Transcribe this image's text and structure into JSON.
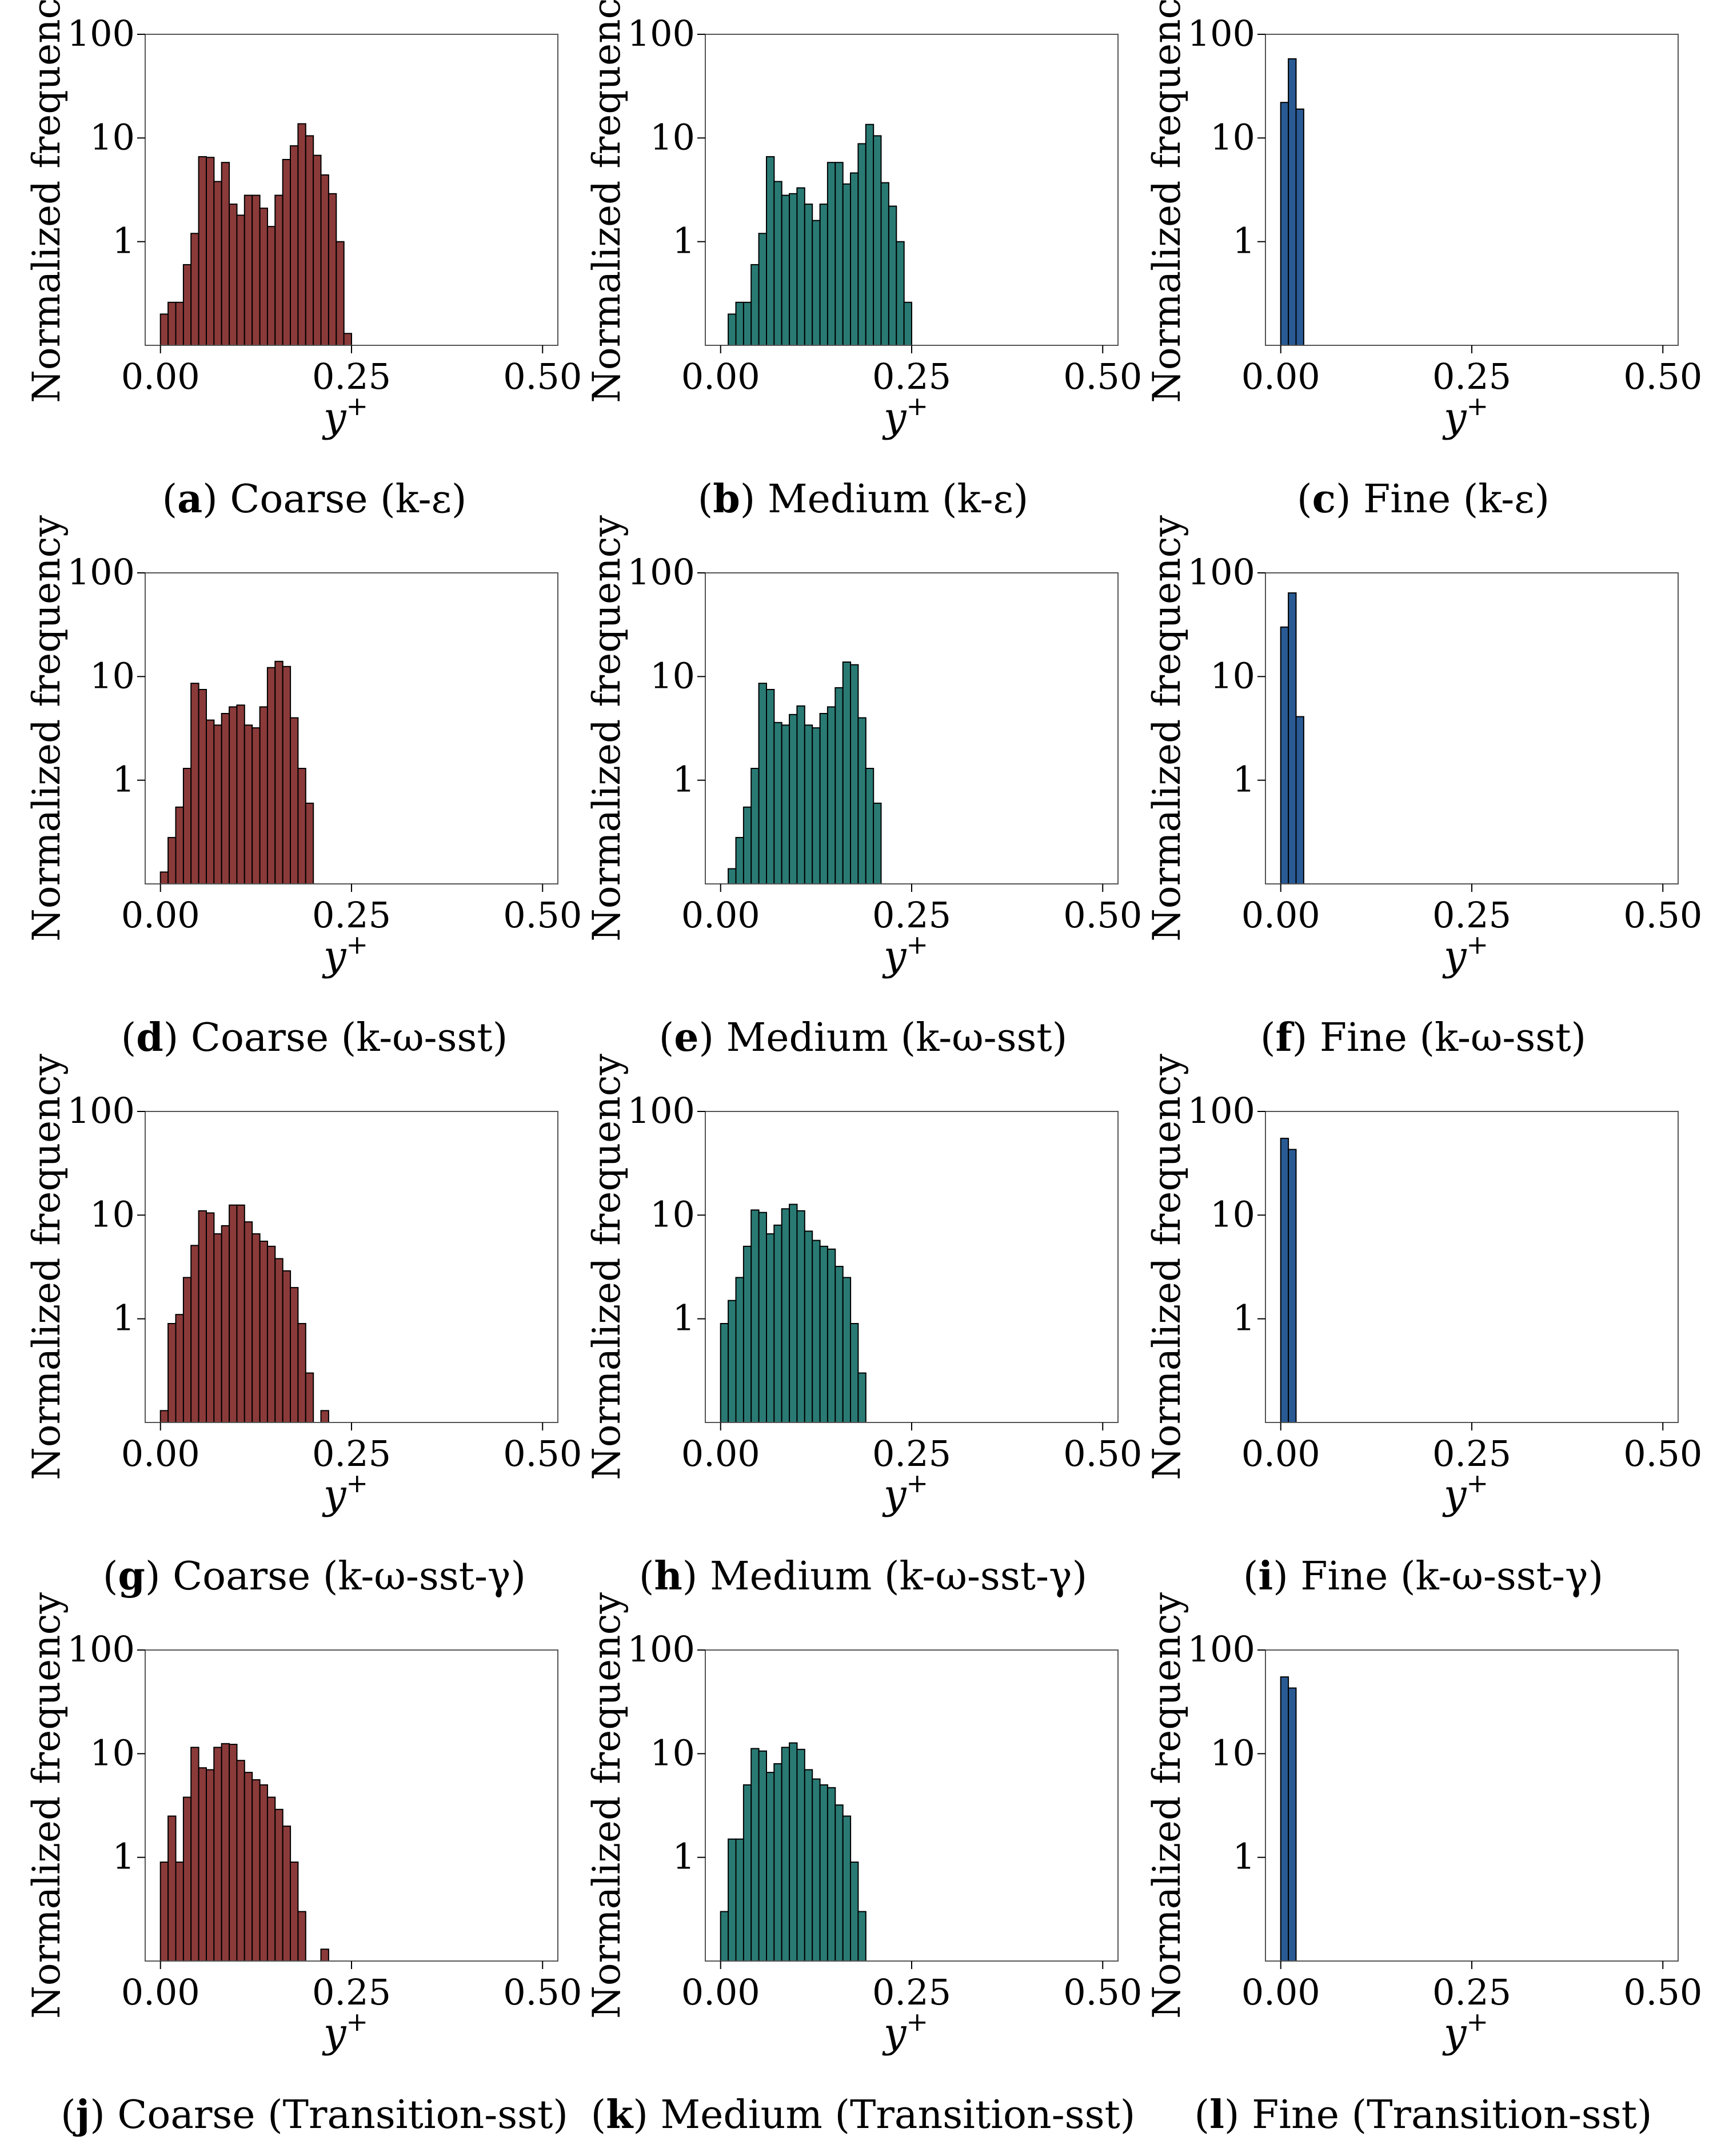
{
  "figure": {
    "panels": [
      {
        "id": "a",
        "label": "a",
        "caption": "Coarse (k-ε)",
        "color": "#8b3a3a"
      },
      {
        "id": "b",
        "label": "b",
        "caption": "Medium (k-ε)",
        "color": "#2a7a74"
      },
      {
        "id": "c",
        "label": "c",
        "caption": "Fine (k-ε)",
        "color": "#2a5a94"
      },
      {
        "id": "d",
        "label": "d",
        "caption": "Coarse (k-ω-sst)",
        "color": "#8b3a3a"
      },
      {
        "id": "e",
        "label": "e",
        "caption": "Medium (k-ω-sst)",
        "color": "#2a7a74"
      },
      {
        "id": "f",
        "label": "f",
        "caption": "Fine (k-ω-sst)",
        "color": "#2a5a94"
      },
      {
        "id": "g",
        "label": "g",
        "caption": "Coarse (k-ω-sst-γ)",
        "color": "#8b3a3a"
      },
      {
        "id": "h",
        "label": "h",
        "caption": "Medium (k-ω-sst-γ)",
        "color": "#2a7a74"
      },
      {
        "id": "i",
        "label": "i",
        "caption": "Fine (k-ω-sst-γ)",
        "color": "#2a5a94"
      },
      {
        "id": "j",
        "label": "j",
        "caption": "Coarse (Transition-sst)",
        "color": "#8b3a3a"
      },
      {
        "id": "k",
        "label": "k",
        "caption": "Medium (Transition-sst)",
        "color": "#2a7a74"
      },
      {
        "id": "l",
        "label": "l",
        "caption": "Fine (Transition-sst)",
        "color": "#2a5a94"
      }
    ]
  },
  "chart_data": [
    {
      "id": "a",
      "type": "bar",
      "title": "",
      "xlabel": "y+",
      "ylabel": "Normalized frequency",
      "yscale": "log",
      "xlim": [
        -0.02,
        0.52
      ],
      "ylim": [
        0.1,
        100
      ],
      "xticks": [
        "0.00",
        "0.25",
        "0.50"
      ],
      "yticks": [
        "1",
        "10",
        "100"
      ],
      "bin_width": 0.01,
      "bins": [
        [
          0.005,
          0.2
        ],
        [
          0.015,
          0.26
        ],
        [
          0.025,
          0.26
        ],
        [
          0.035,
          0.6
        ],
        [
          0.045,
          1.2
        ],
        [
          0.055,
          6.6
        ],
        [
          0.065,
          6.5
        ],
        [
          0.075,
          3.8
        ],
        [
          0.085,
          5.8
        ],
        [
          0.095,
          2.3
        ],
        [
          0.105,
          1.8
        ],
        [
          0.115,
          2.8
        ],
        [
          0.125,
          2.8
        ],
        [
          0.135,
          2.1
        ],
        [
          0.145,
          1.4
        ],
        [
          0.155,
          2.8
        ],
        [
          0.165,
          6.2
        ],
        [
          0.175,
          8.4
        ],
        [
          0.185,
          13.7
        ],
        [
          0.195,
          10.5
        ],
        [
          0.205,
          6.8
        ],
        [
          0.215,
          4.4
        ],
        [
          0.225,
          2.9
        ],
        [
          0.235,
          1.0
        ],
        [
          0.245,
          0.13
        ]
      ]
    },
    {
      "id": "b",
      "type": "bar",
      "title": "",
      "xlabel": "y+",
      "ylabel": "Normalized frequency",
      "yscale": "log",
      "xlim": [
        -0.02,
        0.52
      ],
      "ylim": [
        0.1,
        100
      ],
      "xticks": [
        "0.00",
        "0.25",
        "0.50"
      ],
      "yticks": [
        "1",
        "10",
        "100"
      ],
      "bin_width": 0.01,
      "bins": [
        [
          0.015,
          0.2
        ],
        [
          0.025,
          0.26
        ],
        [
          0.035,
          0.26
        ],
        [
          0.045,
          0.6
        ],
        [
          0.055,
          1.2
        ],
        [
          0.065,
          6.6
        ],
        [
          0.075,
          3.8
        ],
        [
          0.085,
          2.8
        ],
        [
          0.095,
          2.9
        ],
        [
          0.105,
          3.3
        ],
        [
          0.115,
          2.3
        ],
        [
          0.125,
          1.6
        ],
        [
          0.135,
          2.3
        ],
        [
          0.145,
          5.8
        ],
        [
          0.155,
          5.8
        ],
        [
          0.165,
          3.6
        ],
        [
          0.175,
          4.6
        ],
        [
          0.185,
          8.8
        ],
        [
          0.195,
          13.5
        ],
        [
          0.205,
          10.5
        ],
        [
          0.215,
          3.7
        ],
        [
          0.225,
          2.2
        ],
        [
          0.235,
          1.0
        ],
        [
          0.245,
          0.26
        ]
      ]
    },
    {
      "id": "c",
      "type": "bar",
      "title": "",
      "xlabel": "y+",
      "ylabel": "Normalized frequency",
      "yscale": "log",
      "xlim": [
        -0.02,
        0.52
      ],
      "ylim": [
        0.1,
        100
      ],
      "xticks": [
        "0.00",
        "0.25",
        "0.50"
      ],
      "yticks": [
        "1",
        "10",
        "100"
      ],
      "bin_width": 0.01,
      "bins": [
        [
          0.005,
          22
        ],
        [
          0.015,
          58
        ],
        [
          0.025,
          19
        ]
      ]
    },
    {
      "id": "d",
      "type": "bar",
      "title": "",
      "xlabel": "y+",
      "ylabel": "Normalized frequency",
      "yscale": "log",
      "xlim": [
        -0.02,
        0.52
      ],
      "ylim": [
        0.1,
        100
      ],
      "xticks": [
        "0.00",
        "0.25",
        "0.50"
      ],
      "yticks": [
        "1",
        "10",
        "100"
      ],
      "bin_width": 0.01,
      "bins": [
        [
          0.005,
          0.13
        ],
        [
          0.015,
          0.28
        ],
        [
          0.025,
          0.55
        ],
        [
          0.035,
          1.3
        ],
        [
          0.045,
          8.6
        ],
        [
          0.055,
          7.5
        ],
        [
          0.065,
          3.8
        ],
        [
          0.075,
          3.4
        ],
        [
          0.085,
          4.4
        ],
        [
          0.095,
          5.1
        ],
        [
          0.105,
          5.3
        ],
        [
          0.115,
          3.4
        ],
        [
          0.125,
          3.2
        ],
        [
          0.135,
          5.1
        ],
        [
          0.145,
          12.2
        ],
        [
          0.155,
          14.0
        ],
        [
          0.165,
          12.5
        ],
        [
          0.175,
          4.0
        ],
        [
          0.185,
          1.3
        ],
        [
          0.195,
          0.6
        ]
      ]
    },
    {
      "id": "e",
      "type": "bar",
      "title": "",
      "xlabel": "y+",
      "ylabel": "Normalized frequency",
      "yscale": "log",
      "xlim": [
        -0.02,
        0.52
      ],
      "ylim": [
        0.1,
        100
      ],
      "xticks": [
        "0.00",
        "0.25",
        "0.50"
      ],
      "yticks": [
        "1",
        "10",
        "100"
      ],
      "bin_width": 0.01,
      "bins": [
        [
          0.015,
          0.14
        ],
        [
          0.025,
          0.28
        ],
        [
          0.035,
          0.55
        ],
        [
          0.045,
          1.3
        ],
        [
          0.055,
          8.6
        ],
        [
          0.065,
          7.5
        ],
        [
          0.075,
          3.6
        ],
        [
          0.085,
          3.4
        ],
        [
          0.095,
          4.3
        ],
        [
          0.105,
          5.2
        ],
        [
          0.115,
          3.4
        ],
        [
          0.125,
          3.2
        ],
        [
          0.135,
          4.4
        ],
        [
          0.145,
          5.1
        ],
        [
          0.155,
          7.8
        ],
        [
          0.165,
          13.8
        ],
        [
          0.175,
          13.0
        ],
        [
          0.185,
          4.0
        ],
        [
          0.195,
          1.3
        ],
        [
          0.205,
          0.6
        ]
      ]
    },
    {
      "id": "f",
      "type": "bar",
      "title": "",
      "xlabel": "y+",
      "ylabel": "Normalized frequency",
      "yscale": "log",
      "xlim": [
        -0.02,
        0.52
      ],
      "ylim": [
        0.1,
        100
      ],
      "xticks": [
        "0.00",
        "0.25",
        "0.50"
      ],
      "yticks": [
        "1",
        "10",
        "100"
      ],
      "bin_width": 0.01,
      "bins": [
        [
          0.005,
          30
        ],
        [
          0.015,
          64
        ],
        [
          0.025,
          4.1
        ]
      ]
    },
    {
      "id": "g",
      "type": "bar",
      "title": "",
      "xlabel": "y+",
      "ylabel": "Normalized frequency",
      "yscale": "log",
      "xlim": [
        -0.02,
        0.52
      ],
      "ylim": [
        0.1,
        100
      ],
      "xticks": [
        "0.00",
        "0.25",
        "0.50"
      ],
      "yticks": [
        "1",
        "10",
        "100"
      ],
      "bin_width": 0.01,
      "bins": [
        [
          0.005,
          0.13
        ],
        [
          0.015,
          0.9
        ],
        [
          0.025,
          1.1
        ],
        [
          0.035,
          2.5
        ],
        [
          0.045,
          5.1
        ],
        [
          0.055,
          11.0
        ],
        [
          0.065,
          10.5
        ],
        [
          0.075,
          6.6
        ],
        [
          0.085,
          7.9
        ],
        [
          0.095,
          12.5
        ],
        [
          0.105,
          12.5
        ],
        [
          0.115,
          8.6
        ],
        [
          0.125,
          6.6
        ],
        [
          0.135,
          5.6
        ],
        [
          0.145,
          5.0
        ],
        [
          0.155,
          3.8
        ],
        [
          0.165,
          2.9
        ],
        [
          0.175,
          2.0
        ],
        [
          0.185,
          0.9
        ],
        [
          0.195,
          0.3
        ],
        [
          0.215,
          0.13
        ]
      ]
    },
    {
      "id": "h",
      "type": "bar",
      "title": "",
      "xlabel": "y+",
      "ylabel": "Normalized frequency",
      "yscale": "log",
      "xlim": [
        -0.02,
        0.52
      ],
      "ylim": [
        0.1,
        100
      ],
      "xticks": [
        "0.00",
        "0.25",
        "0.50"
      ],
      "yticks": [
        "1",
        "10",
        "100"
      ],
      "bin_width": 0.01,
      "bins": [
        [
          0.005,
          0.9
        ],
        [
          0.015,
          1.5
        ],
        [
          0.025,
          2.5
        ],
        [
          0.035,
          5.0
        ],
        [
          0.045,
          11.2
        ],
        [
          0.055,
          10.6
        ],
        [
          0.065,
          6.6
        ],
        [
          0.075,
          8.0
        ],
        [
          0.085,
          11.5
        ],
        [
          0.095,
          12.7
        ],
        [
          0.105,
          11.0
        ],
        [
          0.115,
          7.0
        ],
        [
          0.125,
          5.7
        ],
        [
          0.135,
          5.0
        ],
        [
          0.145,
          4.7
        ],
        [
          0.155,
          3.2
        ],
        [
          0.165,
          2.5
        ],
        [
          0.175,
          0.9
        ],
        [
          0.185,
          0.3
        ]
      ]
    },
    {
      "id": "i",
      "type": "bar",
      "title": "",
      "xlabel": "y+",
      "ylabel": "Normalized frequency",
      "yscale": "log",
      "xlim": [
        -0.02,
        0.52
      ],
      "ylim": [
        0.1,
        100
      ],
      "xticks": [
        "0.00",
        "0.25",
        "0.50"
      ],
      "yticks": [
        "1",
        "10",
        "100"
      ],
      "bin_width": 0.01,
      "bins": [
        [
          0.005,
          55
        ],
        [
          0.015,
          43
        ]
      ]
    },
    {
      "id": "j",
      "type": "bar",
      "title": "",
      "xlabel": "y+",
      "ylabel": "Normalized frequency",
      "yscale": "log",
      "xlim": [
        -0.02,
        0.52
      ],
      "ylim": [
        0.1,
        100
      ],
      "xticks": [
        "0.00",
        "0.25",
        "0.50"
      ],
      "yticks": [
        "1",
        "10",
        "100"
      ],
      "bin_width": 0.01,
      "bins": [
        [
          0.005,
          0.9
        ],
        [
          0.015,
          2.5
        ],
        [
          0.025,
          0.9
        ],
        [
          0.035,
          3.8
        ],
        [
          0.045,
          11.5
        ],
        [
          0.055,
          7.3
        ],
        [
          0.065,
          7.0
        ],
        [
          0.075,
          11.5
        ],
        [
          0.085,
          12.5
        ],
        [
          0.095,
          12.3
        ],
        [
          0.105,
          8.6
        ],
        [
          0.115,
          6.6
        ],
        [
          0.125,
          5.6
        ],
        [
          0.135,
          5.0
        ],
        [
          0.145,
          3.8
        ],
        [
          0.155,
          2.9
        ],
        [
          0.165,
          2.0
        ],
        [
          0.175,
          0.9
        ],
        [
          0.185,
          0.3
        ],
        [
          0.215,
          0.13
        ]
      ]
    },
    {
      "id": "k",
      "type": "bar",
      "title": "",
      "xlabel": "y+",
      "ylabel": "Normalized frequency",
      "yscale": "log",
      "xlim": [
        -0.02,
        0.52
      ],
      "ylim": [
        0.1,
        100
      ],
      "xticks": [
        "0.00",
        "0.25",
        "0.50"
      ],
      "yticks": [
        "1",
        "10",
        "100"
      ],
      "bin_width": 0.01,
      "bins": [
        [
          0.005,
          0.3
        ],
        [
          0.015,
          1.5
        ],
        [
          0.025,
          1.5
        ],
        [
          0.035,
          5.0
        ],
        [
          0.045,
          11.2
        ],
        [
          0.055,
          10.6
        ],
        [
          0.065,
          6.6
        ],
        [
          0.075,
          8.0
        ],
        [
          0.085,
          11.5
        ],
        [
          0.095,
          12.7
        ],
        [
          0.105,
          11.0
        ],
        [
          0.115,
          7.0
        ],
        [
          0.125,
          5.7
        ],
        [
          0.135,
          5.0
        ],
        [
          0.145,
          4.7
        ],
        [
          0.155,
          3.2
        ],
        [
          0.165,
          2.5
        ],
        [
          0.175,
          0.9
        ],
        [
          0.185,
          0.3
        ]
      ]
    },
    {
      "id": "l",
      "type": "bar",
      "title": "",
      "xlabel": "y+",
      "ylabel": "Normalized frequency",
      "yscale": "log",
      "xlim": [
        -0.02,
        0.52
      ],
      "ylim": [
        0.1,
        100
      ],
      "xticks": [
        "0.00",
        "0.25",
        "0.50"
      ],
      "yticks": [
        "1",
        "10",
        "100"
      ],
      "bin_width": 0.01,
      "bins": [
        [
          0.005,
          55
        ],
        [
          0.015,
          43
        ]
      ]
    }
  ]
}
